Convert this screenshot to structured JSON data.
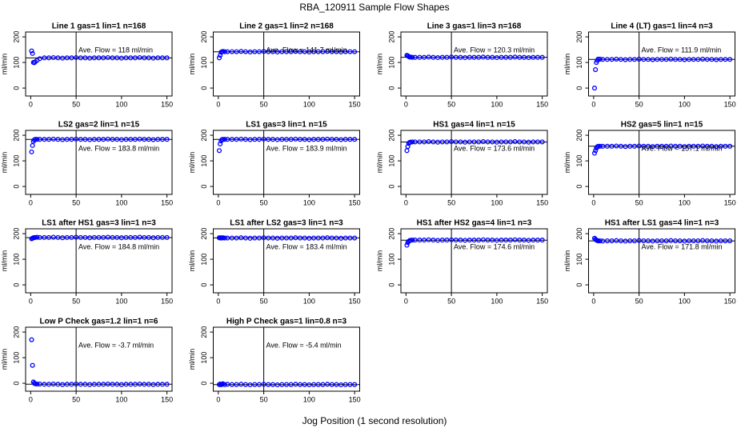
{
  "title": "RBA_120911  Sample Flow Shapes",
  "x_label": "Jog Position (1 second resolution)",
  "chart_data": [
    {
      "type": "scatter",
      "title": "Line 1 gas=1 lin=1 n=168",
      "y_label": "ml/min",
      "annotation": "Ave. Flow =  118  ml/min",
      "mean": 118,
      "vline": 50,
      "color": "#0000ff",
      "xlim": [
        -5.6,
        155.6
      ],
      "ylim": [
        -31,
        219
      ],
      "xticks": [
        0,
        50,
        100,
        150
      ],
      "yticks": [
        0,
        100,
        200
      ],
      "x": [
        1,
        2,
        3,
        4,
        5,
        7,
        10,
        15,
        20,
        25,
        30,
        35,
        40,
        45,
        50,
        55,
        60,
        65,
        70,
        75,
        80,
        85,
        90,
        95,
        100,
        105,
        110,
        115,
        120,
        125,
        130,
        135,
        140,
        145,
        150
      ],
      "values": [
        145,
        135,
        100,
        99,
        103,
        108,
        115,
        118,
        118,
        119,
        118,
        117,
        118,
        118,
        119,
        118,
        118,
        117,
        118,
        118,
        118,
        119,
        118,
        118,
        117,
        118,
        118,
        118,
        119,
        118,
        118,
        117,
        118,
        118,
        118
      ]
    },
    {
      "type": "scatter",
      "title": "Line 2 gas=1 lin=2 n=168",
      "y_label": "ml/min",
      "annotation": "Ave. Flow =  141.7  ml/min",
      "mean": 141.7,
      "vline": 50,
      "color": "#0000ff",
      "xlim": [
        -5.6,
        155.6
      ],
      "ylim": [
        -31,
        219
      ],
      "xticks": [
        0,
        50,
        100,
        150
      ],
      "yticks": [
        0,
        100,
        200
      ],
      "x": [
        1,
        2,
        3,
        4,
        5,
        7,
        10,
        15,
        20,
        25,
        30,
        35,
        40,
        45,
        50,
        55,
        60,
        65,
        70,
        75,
        80,
        85,
        90,
        95,
        100,
        105,
        110,
        115,
        120,
        125,
        130,
        135,
        140,
        145,
        150
      ],
      "values": [
        118,
        128,
        140,
        142,
        143,
        142,
        142,
        142,
        142,
        143,
        142,
        141,
        142,
        142,
        143,
        142,
        142,
        141,
        142,
        142,
        142,
        143,
        142,
        142,
        141,
        142,
        142,
        142,
        143,
        142,
        142,
        141,
        142,
        142,
        142
      ]
    },
    {
      "type": "scatter",
      "title": "Line 3 gas=1 lin=3 n=168",
      "y_label": "ml/min",
      "annotation": "Ave. Flow =  120.3  ml/min",
      "mean": 120.3,
      "vline": 50,
      "color": "#0000ff",
      "xlim": [
        -5.6,
        155.6
      ],
      "ylim": [
        -31,
        219
      ],
      "xticks": [
        0,
        50,
        100,
        150
      ],
      "yticks": [
        0,
        100,
        200
      ],
      "x": [
        1,
        2,
        3,
        4,
        5,
        7,
        10,
        15,
        20,
        25,
        30,
        35,
        40,
        45,
        50,
        55,
        60,
        65,
        70,
        75,
        80,
        85,
        90,
        95,
        100,
        105,
        110,
        115,
        120,
        125,
        130,
        135,
        140,
        145,
        150
      ],
      "values": [
        128,
        126,
        123,
        121,
        121,
        120,
        120,
        120,
        120,
        121,
        120,
        119,
        120,
        120,
        121,
        120,
        120,
        119,
        120,
        120,
        120,
        121,
        120,
        120,
        119,
        120,
        120,
        120,
        121,
        120,
        120,
        119,
        120,
        120,
        120
      ]
    },
    {
      "type": "scatter",
      "title": "Line 4 (LT) gas=1 lin=4 n=3",
      "y_label": "ml/min",
      "annotation": "Ave. Flow =  111.9  ml/min",
      "mean": 111.9,
      "vline": 50,
      "color": "#0000ff",
      "xlim": [
        -5.6,
        155.6
      ],
      "ylim": [
        -31,
        219
      ],
      "xticks": [
        0,
        50,
        100,
        150
      ],
      "yticks": [
        0,
        100,
        200
      ],
      "x": [
        1,
        2,
        3,
        4,
        5,
        7,
        10,
        15,
        20,
        25,
        30,
        35,
        40,
        45,
        50,
        55,
        60,
        65,
        70,
        75,
        80,
        85,
        90,
        95,
        100,
        105,
        110,
        115,
        120,
        125,
        130,
        135,
        140,
        145,
        150
      ],
      "values": [
        0,
        72,
        100,
        108,
        113,
        113,
        112,
        112,
        112,
        113,
        112,
        111,
        112,
        112,
        113,
        112,
        112,
        111,
        112,
        112,
        112,
        113,
        112,
        112,
        111,
        112,
        112,
        112,
        113,
        112,
        112,
        111,
        112,
        112,
        112
      ]
    },
    {
      "type": "scatter",
      "title": "LS2 gas=2 lin=1 n=15",
      "y_label": "ml/min",
      "annotation": "Ave. Flow =  183.8  ml/min",
      "mean": 183.8,
      "vline": 50,
      "color": "#0000ff",
      "xlim": [
        -5.6,
        155.6
      ],
      "ylim": [
        -31,
        219
      ],
      "xticks": [
        0,
        50,
        100,
        150
      ],
      "yticks": [
        0,
        100,
        200
      ],
      "x": [
        1,
        2,
        3,
        4,
        5,
        7,
        10,
        15,
        20,
        25,
        30,
        35,
        40,
        45,
        50,
        55,
        60,
        65,
        70,
        75,
        80,
        85,
        90,
        95,
        100,
        105,
        110,
        115,
        120,
        125,
        130,
        135,
        140,
        145,
        150
      ],
      "values": [
        135,
        160,
        176,
        182,
        184,
        184,
        184,
        184,
        184,
        185,
        184,
        183,
        184,
        184,
        185,
        184,
        184,
        183,
        184,
        184,
        184,
        185,
        184,
        184,
        183,
        184,
        184,
        184,
        185,
        184,
        184,
        183,
        184,
        184,
        184
      ]
    },
    {
      "type": "scatter",
      "title": "LS1 gas=3 lin=1 n=15",
      "y_label": "ml/min",
      "annotation": "Ave. Flow =  183.9  ml/min",
      "mean": 183.9,
      "vline": 50,
      "color": "#0000ff",
      "xlim": [
        -5.6,
        155.6
      ],
      "ylim": [
        -31,
        219
      ],
      "xticks": [
        0,
        50,
        100,
        150
      ],
      "yticks": [
        0,
        100,
        200
      ],
      "x": [
        1,
        2,
        3,
        4,
        5,
        7,
        10,
        15,
        20,
        25,
        30,
        35,
        40,
        45,
        50,
        55,
        60,
        65,
        70,
        75,
        80,
        85,
        90,
        95,
        100,
        105,
        110,
        115,
        120,
        125,
        130,
        135,
        140,
        145,
        150
      ],
      "values": [
        140,
        166,
        178,
        183,
        184,
        184,
        184,
        184,
        184,
        185,
        184,
        183,
        184,
        184,
        185,
        184,
        184,
        183,
        184,
        184,
        184,
        185,
        184,
        184,
        183,
        184,
        184,
        184,
        185,
        184,
        184,
        183,
        184,
        184,
        184
      ]
    },
    {
      "type": "scatter",
      "title": "HS1 gas=4 lin=1 n=15",
      "y_label": "ml/min",
      "annotation": "Ave. Flow =  173.6  ml/min",
      "mean": 173.6,
      "vline": 50,
      "color": "#0000ff",
      "xlim": [
        -5.6,
        155.6
      ],
      "ylim": [
        -31,
        219
      ],
      "xticks": [
        0,
        50,
        100,
        150
      ],
      "yticks": [
        0,
        100,
        200
      ],
      "x": [
        1,
        2,
        3,
        4,
        5,
        7,
        10,
        15,
        20,
        25,
        30,
        35,
        40,
        45,
        50,
        55,
        60,
        65,
        70,
        75,
        80,
        85,
        90,
        95,
        100,
        105,
        110,
        115,
        120,
        125,
        130,
        135,
        140,
        145,
        150
      ],
      "values": [
        140,
        156,
        168,
        172,
        173,
        174,
        174,
        174,
        174,
        175,
        174,
        173,
        174,
        174,
        175,
        174,
        174,
        173,
        174,
        174,
        174,
        175,
        174,
        174,
        173,
        174,
        174,
        174,
        175,
        174,
        174,
        173,
        174,
        174,
        174
      ]
    },
    {
      "type": "scatter",
      "title": "HS2 gas=5 lin=1 n=15",
      "y_label": "ml/min",
      "annotation": "Ave. Flow =  157.1  ml/min",
      "mean": 157.1,
      "vline": 50,
      "color": "#0000ff",
      "xlim": [
        -5.6,
        155.6
      ],
      "ylim": [
        -31,
        219
      ],
      "xticks": [
        0,
        50,
        100,
        150
      ],
      "yticks": [
        0,
        100,
        200
      ],
      "x": [
        1,
        2,
        3,
        4,
        5,
        7,
        10,
        15,
        20,
        25,
        30,
        35,
        40,
        45,
        50,
        55,
        60,
        65,
        70,
        75,
        80,
        85,
        90,
        95,
        100,
        105,
        110,
        115,
        120,
        125,
        130,
        135,
        140,
        145,
        150
      ],
      "values": [
        130,
        140,
        150,
        155,
        157,
        157,
        157,
        157,
        157,
        158,
        157,
        156,
        157,
        157,
        158,
        157,
        157,
        156,
        157,
        157,
        157,
        158,
        157,
        157,
        156,
        157,
        157,
        157,
        158,
        157,
        157,
        156,
        157,
        157,
        157
      ]
    },
    {
      "type": "scatter",
      "title": "LS1 after HS1 gas=3 lin=1 n=3",
      "y_label": "ml/min",
      "annotation": "Ave. Flow =  184.8  ml/min",
      "mean": 184.8,
      "vline": 50,
      "color": "#0000ff",
      "xlim": [
        -5.6,
        155.6
      ],
      "ylim": [
        -31,
        219
      ],
      "xticks": [
        0,
        50,
        100,
        150
      ],
      "yticks": [
        0,
        100,
        200
      ],
      "x": [
        1,
        2,
        3,
        4,
        5,
        7,
        10,
        15,
        20,
        25,
        30,
        35,
        40,
        45,
        50,
        55,
        60,
        65,
        70,
        75,
        80,
        85,
        90,
        95,
        100,
        105,
        110,
        115,
        120,
        125,
        130,
        135,
        140,
        145,
        150
      ],
      "values": [
        180,
        182,
        184,
        185,
        185,
        186,
        185,
        185,
        185,
        186,
        185,
        184,
        185,
        185,
        186,
        185,
        185,
        184,
        185,
        185,
        185,
        186,
        185,
        185,
        184,
        185,
        185,
        185,
        186,
        185,
        185,
        184,
        185,
        185,
        185
      ]
    },
    {
      "type": "scatter",
      "title": "LS1 after LS2 gas=3 lin=1 n=3",
      "y_label": "ml/min",
      "annotation": "Ave. Flow =  183.4  ml/min",
      "mean": 183.4,
      "vline": 50,
      "color": "#0000ff",
      "xlim": [
        -5.6,
        155.6
      ],
      "ylim": [
        -31,
        219
      ],
      "xticks": [
        0,
        50,
        100,
        150
      ],
      "yticks": [
        0,
        100,
        200
      ],
      "x": [
        1,
        2,
        3,
        4,
        5,
        7,
        10,
        15,
        20,
        25,
        30,
        35,
        40,
        45,
        50,
        55,
        60,
        65,
        70,
        75,
        80,
        85,
        90,
        95,
        100,
        105,
        110,
        115,
        120,
        125,
        130,
        135,
        140,
        145,
        150
      ],
      "values": [
        184,
        183,
        184,
        183,
        184,
        183,
        183,
        183,
        183,
        184,
        183,
        182,
        183,
        183,
        184,
        183,
        183,
        182,
        183,
        183,
        183,
        184,
        183,
        183,
        182,
        183,
        183,
        183,
        184,
        183,
        183,
        182,
        183,
        183,
        183
      ]
    },
    {
      "type": "scatter",
      "title": "HS1 after HS2 gas=4 lin=1 n=3",
      "y_label": "ml/min",
      "annotation": "Ave. Flow =  174.6  ml/min",
      "mean": 174.6,
      "vline": 50,
      "color": "#0000ff",
      "xlim": [
        -5.6,
        155.6
      ],
      "ylim": [
        -31,
        219
      ],
      "xticks": [
        0,
        50,
        100,
        150
      ],
      "yticks": [
        0,
        100,
        200
      ],
      "x": [
        1,
        2,
        3,
        4,
        5,
        7,
        10,
        15,
        20,
        25,
        30,
        35,
        40,
        45,
        50,
        55,
        60,
        65,
        70,
        75,
        80,
        85,
        90,
        95,
        100,
        105,
        110,
        115,
        120,
        125,
        130,
        135,
        140,
        145,
        150
      ],
      "values": [
        155,
        165,
        170,
        173,
        174,
        175,
        175,
        175,
        175,
        176,
        175,
        174,
        175,
        175,
        176,
        175,
        175,
        174,
        175,
        175,
        175,
        176,
        175,
        175,
        174,
        175,
        175,
        175,
        176,
        175,
        175,
        174,
        175,
        175,
        175
      ]
    },
    {
      "type": "scatter",
      "title": "HS1 after LS1 gas=4 lin=1 n=3",
      "y_label": "ml/min",
      "annotation": "Ave. Flow =  171.8  ml/min",
      "mean": 171.8,
      "vline": 50,
      "color": "#0000ff",
      "xlim": [
        -5.6,
        155.6
      ],
      "ylim": [
        -31,
        219
      ],
      "xticks": [
        0,
        50,
        100,
        150
      ],
      "yticks": [
        0,
        100,
        200
      ],
      "x": [
        1,
        2,
        3,
        4,
        5,
        7,
        10,
        15,
        20,
        25,
        30,
        35,
        40,
        45,
        50,
        55,
        60,
        65,
        70,
        75,
        80,
        85,
        90,
        95,
        100,
        105,
        110,
        115,
        120,
        125,
        130,
        135,
        140,
        145,
        150
      ],
      "values": [
        182,
        178,
        175,
        173,
        172,
        172,
        171,
        172,
        172,
        173,
        172,
        171,
        172,
        172,
        173,
        172,
        172,
        171,
        172,
        172,
        172,
        173,
        172,
        172,
        171,
        172,
        172,
        172,
        173,
        172,
        172,
        171,
        172,
        172,
        172
      ]
    },
    {
      "type": "scatter",
      "title": "Low P Check gas=1.2 lin=1 n=6",
      "y_label": "ml/min",
      "annotation": "Ave. Flow =  -3.7  ml/min",
      "mean": -3.7,
      "vline": 50,
      "color": "#0000ff",
      "xlim": [
        -5.6,
        155.6
      ],
      "ylim": [
        -31,
        219
      ],
      "xticks": [
        0,
        50,
        100,
        150
      ],
      "yticks": [
        0,
        100,
        200
      ],
      "x": [
        1,
        2,
        3,
        4,
        5,
        7,
        10,
        15,
        20,
        25,
        30,
        35,
        40,
        45,
        50,
        55,
        60,
        65,
        70,
        75,
        80,
        85,
        90,
        95,
        100,
        105,
        110,
        115,
        120,
        125,
        130,
        135,
        140,
        145,
        150
      ],
      "values": [
        170,
        70,
        5,
        0,
        -2,
        -3,
        -3,
        -4,
        -4,
        -3,
        -4,
        -5,
        -4,
        -4,
        -3,
        -4,
        -4,
        -5,
        -4,
        -4,
        -4,
        -3,
        -4,
        -4,
        -5,
        -4,
        -4,
        -4,
        -3,
        -4,
        -4,
        -5,
        -4,
        -4,
        -4
      ]
    },
    {
      "type": "scatter",
      "title": "High P Check gas=1 lin=0.8 n=3",
      "y_label": "ml/min",
      "annotation": "Ave. Flow =  -5.4  ml/min",
      "mean": -5.4,
      "vline": 50,
      "color": "#0000ff",
      "xlim": [
        -5.6,
        155.6
      ],
      "ylim": [
        -31,
        219
      ],
      "xticks": [
        0,
        50,
        100,
        150
      ],
      "yticks": [
        0,
        100,
        200
      ],
      "x": [
        1,
        2,
        3,
        4,
        5,
        7,
        10,
        15,
        20,
        25,
        30,
        35,
        40,
        45,
        50,
        55,
        60,
        65,
        70,
        75,
        80,
        85,
        90,
        95,
        100,
        105,
        110,
        115,
        120,
        125,
        130,
        135,
        140,
        145,
        150
      ],
      "values": [
        -5,
        -3,
        -6,
        -4,
        -2,
        -5,
        -4,
        -5,
        -5,
        -4,
        -5,
        -6,
        -5,
        -5,
        -4,
        -5,
        -5,
        -6,
        -5,
        -5,
        -5,
        -4,
        -5,
        -5,
        -6,
        -5,
        -5,
        -5,
        -4,
        -5,
        -5,
        -6,
        -5,
        -5,
        -5
      ]
    }
  ]
}
